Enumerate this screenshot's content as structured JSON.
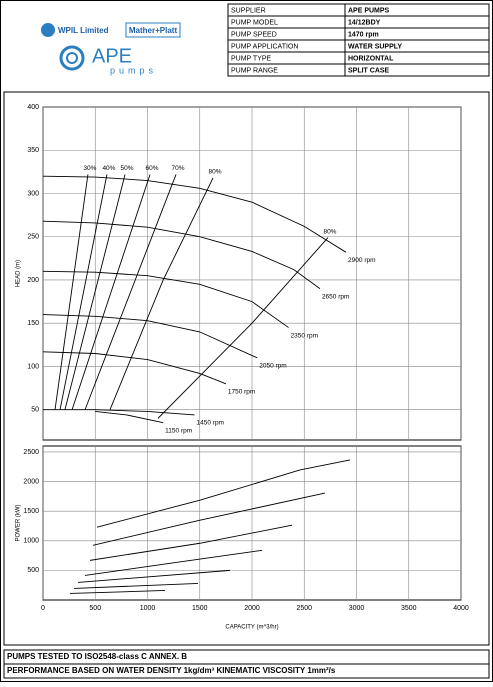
{
  "header": {
    "logos": [
      "WPIL Limited",
      "Mather+Platt",
      "APE",
      "pumps"
    ],
    "table": [
      [
        "SUPPLIER",
        "APE PUMPS"
      ],
      [
        "PUMP MODEL",
        "14/12BDY"
      ],
      [
        "PUMP SPEED",
        "1470 rpm"
      ],
      [
        "PUMP APPLICATION",
        "WATER SUPPLY"
      ],
      [
        "PUMP TYPE",
        "HORIZONTAL"
      ],
      [
        "PUMP RANGE",
        "SPLIT CASE"
      ]
    ]
  },
  "chart_data": [
    {
      "type": "line",
      "y_label": "HEAD (m)",
      "xlim": [
        0,
        4000
      ],
      "ylim": [
        15,
        400
      ],
      "yticks": [
        50,
        100,
        150,
        200,
        250,
        300,
        350,
        400
      ],
      "grid": true,
      "color": "#000000",
      "series": [
        {
          "name": "2900 rpm",
          "x": [
            0,
            500,
            1000,
            1500,
            2000,
            2500,
            2900
          ],
          "values": [
            320,
            319,
            315,
            306,
            290,
            262,
            232
          ]
        },
        {
          "name": "2650 rpm",
          "x": [
            0,
            500,
            1000,
            1500,
            2000,
            2400,
            2650
          ],
          "values": [
            268,
            266,
            261,
            250,
            233,
            212,
            190
          ]
        },
        {
          "name": "2350 rpm",
          "x": [
            0,
            500,
            1000,
            1500,
            2000,
            2350
          ],
          "values": [
            210,
            209,
            205,
            195,
            175,
            145
          ]
        },
        {
          "name": "2050 rpm",
          "x": [
            0,
            500,
            1000,
            1500,
            2050
          ],
          "values": [
            160,
            158,
            153,
            140,
            110
          ]
        },
        {
          "name": "1750 rpm",
          "x": [
            0,
            500,
            1000,
            1500,
            1750
          ],
          "values": [
            117,
            115,
            108,
            92,
            80
          ]
        },
        {
          "name": "1450 rpm",
          "x": [
            0,
            500,
            1000,
            1450
          ],
          "values": [
            50,
            50,
            48,
            44
          ]
        },
        {
          "name": "1150 rpm",
          "x": [
            500,
            800,
            1150
          ],
          "values": [
            48,
            44,
            35
          ]
        }
      ],
      "efficiency_lines": [
        {
          "name": "30%",
          "x": [
            115,
            430
          ],
          "values": [
            50,
            322
          ]
        },
        {
          "name": "40%",
          "x": [
            163,
            612
          ],
          "values": [
            50,
            322
          ]
        },
        {
          "name": "50%",
          "x": [
            210,
            785
          ],
          "values": [
            50,
            322
          ]
        },
        {
          "name": "60%",
          "x": [
            278,
            1024
          ],
          "values": [
            50,
            322
          ]
        },
        {
          "name": "70%",
          "x": [
            402,
            1273
          ],
          "values": [
            50,
            322
          ]
        },
        {
          "name": "80%",
          "x": [
            641,
            1150,
            1627
          ],
          "values": [
            50,
            200,
            318
          ]
        },
        {
          "name": "80%",
          "x": [
            1100,
            2000,
            2727
          ],
          "values": [
            40,
            150,
            249
          ]
        }
      ]
    },
    {
      "type": "line",
      "x_label": "CAPACITY (m^3/hr)",
      "y_label": "POWER (kW)",
      "xlim": [
        0,
        4000
      ],
      "ylim": [
        0,
        2600
      ],
      "xticks": [
        0,
        500,
        1000,
        1500,
        2000,
        2500,
        3000,
        3500,
        4000
      ],
      "yticks": [
        500,
        1000,
        1500,
        2000,
        2500
      ],
      "grid": true,
      "color": "#000000",
      "series": [
        {
          "name": null,
          "x": [
            517,
            1502,
            2459,
            2938
          ],
          "values": [
            1229,
            1686,
            2195,
            2364
          ]
        },
        {
          "name": null,
          "x": [
            478,
            1502,
            2698
          ],
          "values": [
            924,
            1347,
            1805
          ]
        },
        {
          "name": null,
          "x": [
            450,
            1502,
            2383
          ],
          "values": [
            669,
            958,
            1263
          ]
        },
        {
          "name": null,
          "x": [
            402,
            1215,
            2096
          ],
          "values": [
            415,
            619,
            839
          ]
        },
        {
          "name": null,
          "x": [
            335,
            1789
          ],
          "values": [
            297,
            500
          ]
        },
        {
          "name": null,
          "x": [
            297,
            1483
          ],
          "values": [
            195,
            280
          ]
        },
        {
          "name": null,
          "x": [
            258,
            1167
          ],
          "values": [
            110,
            161
          ]
        }
      ]
    }
  ],
  "footer": [
    "PUMPS TESTED TO ISO2548-class C ANNEX. B",
    "PERFORMANCE BASED ON WATER DENSITY 1kg/dm³  KINEMATIC VISCOSITY 1mm²/s"
  ]
}
